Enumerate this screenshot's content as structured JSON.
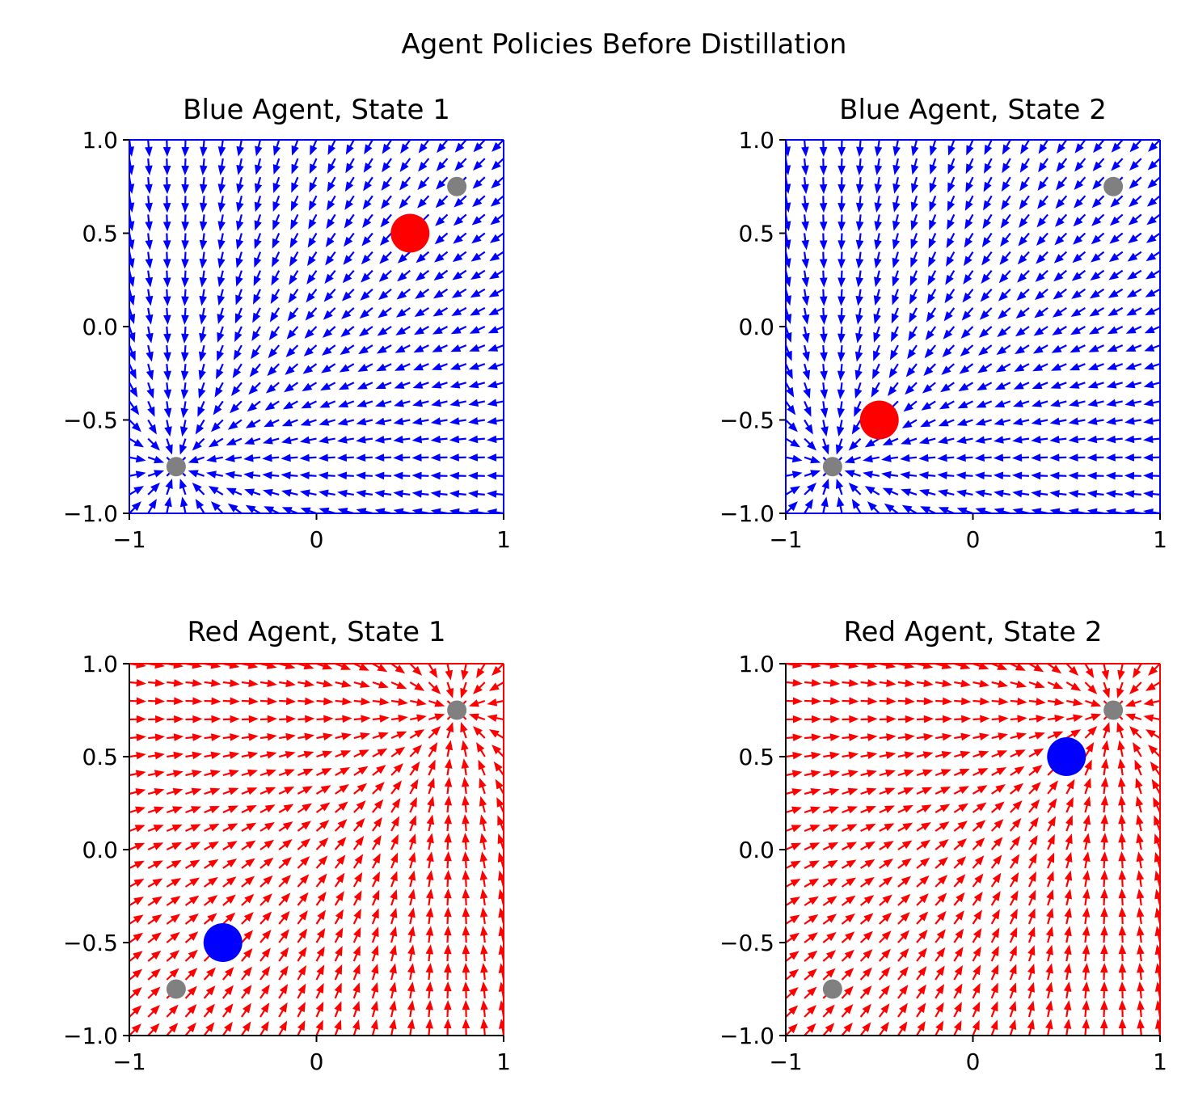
{
  "figure": {
    "title": "Agent Policies Before Distillation"
  },
  "chart_data": [
    {
      "type": "quiver",
      "title": "Blue Agent, State 1",
      "arrow_color": "#0000ff",
      "xlim": [
        -1,
        1
      ],
      "ylim": [
        -1,
        1
      ],
      "xticks": [
        "−1",
        "0",
        "1"
      ],
      "yticks": [
        "−1.0",
        "−0.5",
        "0.0",
        "0.5",
        "1.0"
      ],
      "field": {
        "kind": "attract",
        "targets": [
          [
            -0.75,
            -0.75
          ]
        ],
        "grid": 21
      },
      "markers": [
        {
          "x": 0.75,
          "y": 0.75,
          "color": "#808080",
          "size": "small"
        },
        {
          "x": -0.75,
          "y": -0.75,
          "color": "#808080",
          "size": "small"
        },
        {
          "x": 0.5,
          "y": 0.5,
          "color": "#ff0000",
          "size": "large"
        }
      ]
    },
    {
      "type": "quiver",
      "title": "Blue Agent, State 2",
      "arrow_color": "#0000ff",
      "xlim": [
        -1,
        1
      ],
      "ylim": [
        -1,
        1
      ],
      "xticks": [
        "−1",
        "0",
        "1"
      ],
      "yticks": [
        "−1.0",
        "−0.5",
        "0.0",
        "0.5",
        "1.0"
      ],
      "field": {
        "kind": "attract",
        "targets": [
          [
            -0.75,
            -0.75
          ]
        ],
        "grid": 21
      },
      "markers": [
        {
          "x": 0.75,
          "y": 0.75,
          "color": "#808080",
          "size": "small"
        },
        {
          "x": -0.75,
          "y": -0.75,
          "color": "#808080",
          "size": "small"
        },
        {
          "x": -0.5,
          "y": -0.5,
          "color": "#ff0000",
          "size": "large"
        }
      ]
    },
    {
      "type": "quiver",
      "title": "Red Agent, State 1",
      "arrow_color": "#ff0000",
      "xlim": [
        -1,
        1
      ],
      "ylim": [
        -1,
        1
      ],
      "xticks": [
        "−1",
        "0",
        "1"
      ],
      "yticks": [
        "−1.0",
        "−0.5",
        "0.0",
        "0.5",
        "1.0"
      ],
      "field": {
        "kind": "attract",
        "targets": [
          [
            0.75,
            0.75
          ]
        ],
        "grid": 21
      },
      "markers": [
        {
          "x": 0.75,
          "y": 0.75,
          "color": "#808080",
          "size": "small"
        },
        {
          "x": -0.75,
          "y": -0.75,
          "color": "#808080",
          "size": "small"
        },
        {
          "x": -0.5,
          "y": -0.5,
          "color": "#0000ff",
          "size": "large"
        }
      ]
    },
    {
      "type": "quiver",
      "title": "Red Agent, State 2",
      "arrow_color": "#ff0000",
      "xlim": [
        -1,
        1
      ],
      "ylim": [
        -1,
        1
      ],
      "xticks": [
        "−1",
        "0",
        "1"
      ],
      "yticks": [
        "−1.0",
        "−0.5",
        "0.0",
        "0.5",
        "1.0"
      ],
      "field": {
        "kind": "attract",
        "targets": [
          [
            0.75,
            0.75
          ]
        ],
        "grid": 21
      },
      "markers": [
        {
          "x": 0.75,
          "y": 0.75,
          "color": "#808080",
          "size": "small"
        },
        {
          "x": -0.75,
          "y": -0.75,
          "color": "#808080",
          "size": "small"
        },
        {
          "x": 0.5,
          "y": 0.5,
          "color": "#0000ff",
          "size": "large"
        }
      ]
    }
  ]
}
